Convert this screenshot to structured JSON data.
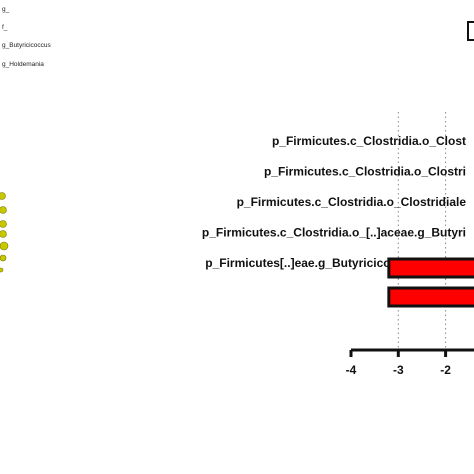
{
  "legend": {
    "items": [
      "g_",
      "f_",
      "g_Butyricicoccus",
      "g_Holdemania"
    ]
  },
  "chart_data": {
    "type": "bar",
    "orientation": "horizontal",
    "title": "",
    "xlabel": "",
    "ylabel": "",
    "xlim": [
      -4,
      1
    ],
    "x_ticks": [
      -4,
      -3,
      -2
    ],
    "grid": "dotted vertical lines at -3 and -2",
    "colors": {
      "bar_fill": "#ff0000",
      "bar_stroke": "#111111",
      "dots": "#c8c800"
    },
    "labels": [
      "p_Firmicutes.c_Clostridia.o_Clost",
      "p_Firmicutes.c_Clostridia.o_Clostri",
      "p_Firmicutes.c_Clostridia.o_Clostridiale",
      "p_Firmicutes.c_Clostridia.o_[..]aceae.g_Butyri",
      "p_Firmicutes[..]eae.g_Butyricicoccus.s_pullic"
    ],
    "bars": [
      {
        "value": -3.2
      },
      {
        "value": -3.2
      }
    ]
  }
}
